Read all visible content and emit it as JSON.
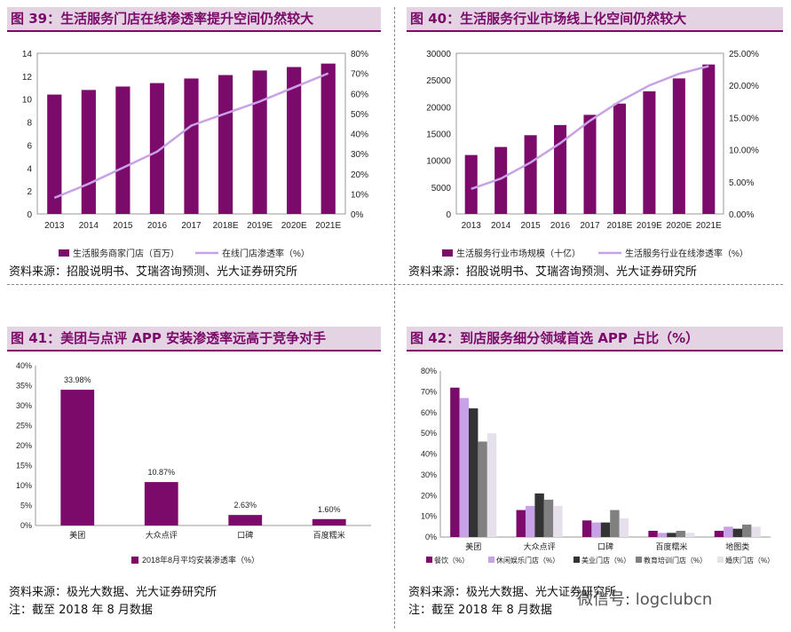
{
  "figures": [
    {
      "title": "图 39：生活服务门店在线渗透率提升空间仍然较大",
      "source": "资料来源：招股说明书、艾瑞咨询预测、光大证券研究所",
      "note": ""
    },
    {
      "title": "图 40：生活服务行业市场线上化空间仍然较大",
      "source": "资料来源：招股说明书、艾瑞咨询预测、光大证券研究所",
      "note": ""
    },
    {
      "title": "图 41：美团与点评 APP 安装渗透率远高于竞争对手",
      "source": "资料来源：极光大数据、光大证券研究所",
      "note": "注：截至 2018 年 8 月数据"
    },
    {
      "title": "图 42：到店服务细分领域首选 APP 占比（%）",
      "source": "资料来源：极光大数据、光大证券研究所",
      "note": "注：截至 2018 年 8 月数据"
    }
  ],
  "watermark": "微信号: logclubcn",
  "colors": {
    "purple": "#7b0a6b",
    "lavender": "#c8a2e6",
    "dark": "#333333",
    "gray": "#808080",
    "light_gray": "#bfbfbf",
    "pale": "#e6e0ec",
    "header_bg": "#e4d3e2"
  },
  "chart_data": [
    {
      "type": "bar+line",
      "categories": [
        "2013",
        "2014",
        "2015",
        "2016",
        "2017",
        "2018E",
        "2019E",
        "2020E",
        "2021E"
      ],
      "series": [
        {
          "name": "生活服务商家门店（百万）",
          "type": "bar",
          "axis": "left",
          "values": [
            10.4,
            10.8,
            11.1,
            11.4,
            11.8,
            12.1,
            12.5,
            12.8,
            13.1
          ]
        },
        {
          "name": "在线门店渗透率（%）",
          "type": "line",
          "axis": "right",
          "values": [
            8,
            15,
            23,
            31,
            44,
            50,
            56,
            63,
            70
          ]
        }
      ],
      "ylim": [
        0,
        14
      ],
      "yticks": [
        "0",
        "2",
        "4",
        "6",
        "8",
        "10",
        "12",
        "14"
      ],
      "y2lim": [
        0,
        80
      ],
      "y2ticks": [
        "0%",
        "10%",
        "20%",
        "30%",
        "40%",
        "50%",
        "60%",
        "70%",
        "80%"
      ],
      "legend_position": "bottom"
    },
    {
      "type": "bar+line",
      "categories": [
        "2013",
        "2014",
        "2015",
        "2016",
        "2017",
        "2018E",
        "2019E",
        "2020E",
        "2021E"
      ],
      "series": [
        {
          "name": "生活服务行业市场规模（十亿）",
          "type": "bar",
          "axis": "left",
          "values": [
            11000,
            12500,
            14700,
            16600,
            18500,
            20600,
            22900,
            25300,
            27900
          ]
        },
        {
          "name": "生活服务行业在线渗透率（%）",
          "type": "line",
          "axis": "right",
          "values": [
            3.9,
            5.5,
            8.0,
            11.0,
            14.5,
            17.5,
            20.0,
            21.8,
            23.0
          ]
        }
      ],
      "ylim": [
        0,
        30000
      ],
      "yticks": [
        "0",
        "5000",
        "10000",
        "15000",
        "20000",
        "25000",
        "30000"
      ],
      "y2lim": [
        0,
        25
      ],
      "y2ticks": [
        "0.00%",
        "5.00%",
        "10.00%",
        "15.00%",
        "20.00%",
        "25.00%"
      ],
      "legend_position": "bottom"
    },
    {
      "type": "bar",
      "categories": [
        "美团",
        "大众点评",
        "口碑",
        "百度糯米"
      ],
      "series": [
        {
          "name": "2018年8月平均安装渗透率（%）",
          "values": [
            33.98,
            10.87,
            2.63,
            1.6
          ]
        }
      ],
      "data_labels": [
        "33.98%",
        "10.87%",
        "2.63%",
        "1.60%"
      ],
      "ylim": [
        0,
        40
      ],
      "yticks": [
        "0%",
        "5%",
        "10%",
        "15%",
        "20%",
        "25%",
        "30%",
        "35%",
        "40%"
      ],
      "legend_position": "bottom"
    },
    {
      "type": "bar",
      "categories": [
        "美团",
        "大众点评",
        "口碑",
        "百度糯米",
        "地图类"
      ],
      "series": [
        {
          "name": "餐饮（%）",
          "values": [
            72,
            13,
            8,
            3,
            3
          ]
        },
        {
          "name": "休闲娱乐门店（%）",
          "values": [
            67,
            15,
            7,
            2,
            5
          ]
        },
        {
          "name": "美业门店（%）",
          "values": [
            62,
            21,
            7,
            2,
            4
          ]
        },
        {
          "name": "教育培训门店（%）",
          "values": [
            46,
            18,
            13,
            3,
            6
          ]
        },
        {
          "name": "婚庆门店（%）",
          "values": [
            50,
            15,
            9,
            2,
            5
          ]
        }
      ],
      "ylim": [
        0,
        80
      ],
      "yticks": [
        "0%",
        "10%",
        "20%",
        "30%",
        "40%",
        "50%",
        "60%",
        "70%",
        "80%"
      ],
      "legend_position": "bottom"
    }
  ]
}
